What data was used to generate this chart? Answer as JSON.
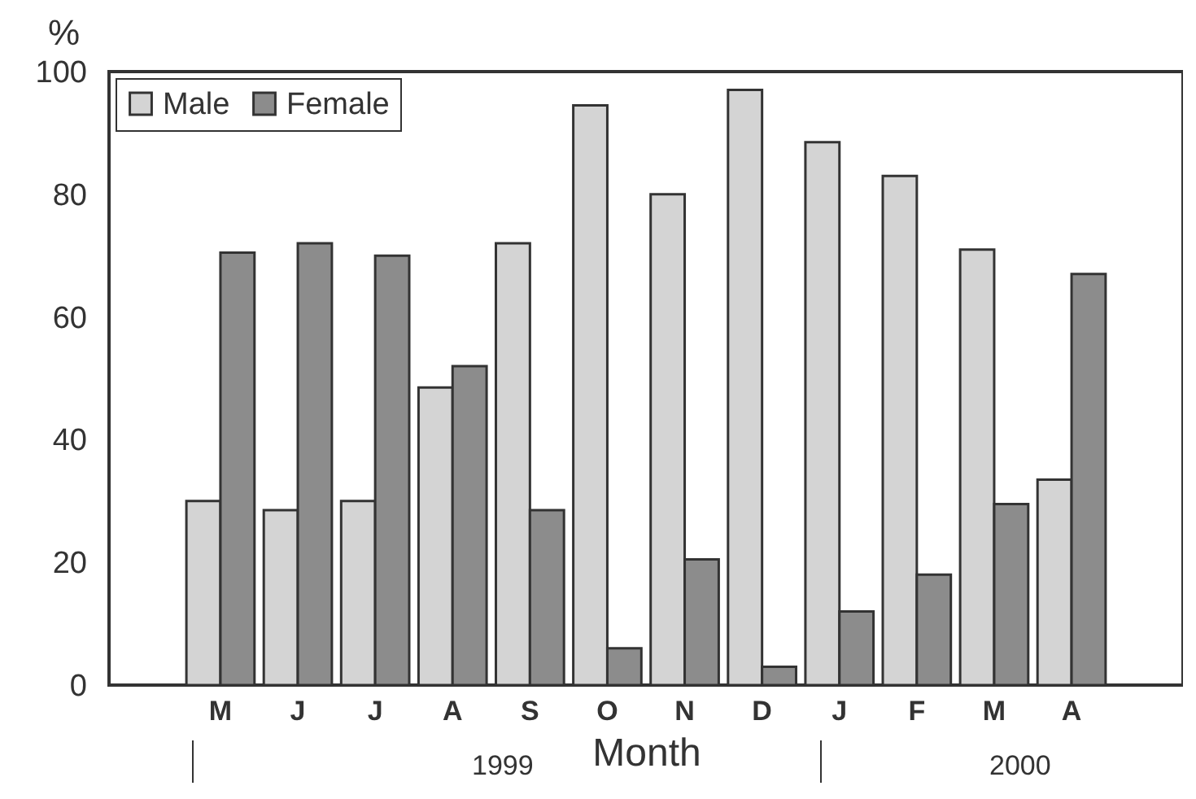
{
  "chart_data": {
    "type": "bar",
    "ylabel": "%",
    "xlabel": "Month",
    "categories": [
      "M",
      "J",
      "J",
      "A",
      "S",
      "O",
      "N",
      "D",
      "J",
      "F",
      "M",
      "A"
    ],
    "series": [
      {
        "name": "Male",
        "color": "#d4d4d4",
        "values": [
          30,
          28.5,
          30,
          48.5,
          72,
          94.5,
          80,
          97,
          88.5,
          83,
          71,
          33.5
        ]
      },
      {
        "name": "Female",
        "color": "#8c8c8c",
        "values": [
          70.5,
          72,
          70,
          52,
          28.5,
          6,
          20.5,
          3,
          12,
          18,
          29.5,
          67
        ]
      }
    ],
    "ylim": [
      0,
      100
    ],
    "yticks": [
      0,
      20,
      40,
      60,
      80,
      100
    ],
    "grid": false,
    "legend": "top left",
    "annotations": [
      "1999",
      "2000"
    ]
  }
}
